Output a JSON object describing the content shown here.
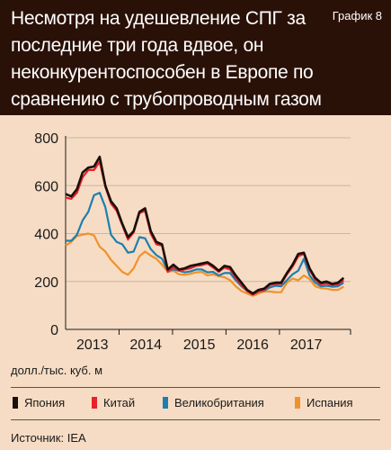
{
  "header": {
    "title": "Несмотря на удешевление СПГ за последние три года вдвое, он неконкурентоспособен в Европе по сравнению с трубопроводным газом",
    "label": "График 8"
  },
  "units": "долл./тыс. куб. м",
  "source": "Источник: IEA",
  "colors": {
    "background": "#f6dcc4",
    "header": "#2a1108",
    "japan": "#1a0f0a",
    "china": "#e8202a",
    "uk": "#1c7fb0",
    "spain": "#f0922a"
  },
  "chart_data": {
    "type": "line",
    "x_start": 2012.5,
    "x_end": 2017.83,
    "ylim": [
      0,
      800
    ],
    "yticks": [
      "0",
      "200",
      "400",
      "600",
      "800"
    ],
    "xticks": [
      {
        "label": "2013",
        "value": 2013.0
      },
      {
        "label": "2014",
        "value": 2014.0
      },
      {
        "label": "2015",
        "value": 2015.0
      },
      {
        "label": "2016",
        "value": 2016.0
      },
      {
        "label": "2017",
        "value": 2017.0
      }
    ],
    "series": [
      {
        "name": "Япония",
        "color": "#1a0f0a",
        "values": [
          565,
          555,
          585,
          655,
          675,
          680,
          720,
          600,
          535,
          505,
          440,
          385,
          410,
          490,
          505,
          410,
          365,
          355,
          250,
          270,
          250,
          255,
          265,
          270,
          275,
          280,
          265,
          245,
          265,
          260,
          225,
          195,
          165,
          150,
          165,
          170,
          190,
          195,
          195,
          235,
          270,
          315,
          320,
          255,
          215,
          195,
          200,
          190,
          195,
          215
        ]
      },
      {
        "name": "Китай",
        "color": "#e8202a",
        "values": [
          550,
          545,
          570,
          635,
          665,
          665,
          700,
          595,
          525,
          495,
          435,
          375,
          405,
          485,
          495,
          400,
          355,
          350,
          240,
          260,
          245,
          250,
          255,
          265,
          268,
          275,
          258,
          240,
          258,
          250,
          215,
          185,
          160,
          145,
          158,
          165,
          185,
          190,
          190,
          230,
          262,
          305,
          315,
          248,
          208,
          188,
          192,
          185,
          188,
          205
        ]
      },
      {
        "name": "Великобритания",
        "color": "#1c7fb0",
        "values": [
          370,
          370,
          395,
          455,
          490,
          560,
          570,
          510,
          395,
          365,
          355,
          320,
          325,
          385,
          380,
          335,
          310,
          295,
          245,
          250,
          245,
          238,
          242,
          250,
          250,
          238,
          240,
          225,
          235,
          235,
          205,
          180,
          160,
          145,
          158,
          162,
          175,
          182,
          180,
          205,
          230,
          245,
          295,
          225,
          195,
          180,
          182,
          178,
          180,
          195
        ]
      },
      {
        "name": "Испания",
        "color": "#f0922a",
        "values": [
          350,
          365,
          390,
          395,
          400,
          392,
          345,
          325,
          290,
          265,
          240,
          228,
          255,
          305,
          325,
          308,
          295,
          270,
          240,
          245,
          230,
          228,
          232,
          238,
          240,
          225,
          230,
          222,
          218,
          205,
          180,
          160,
          150,
          140,
          150,
          158,
          158,
          155,
          155,
          195,
          212,
          205,
          225,
          210,
          180,
          172,
          170,
          165,
          165,
          178
        ]
      }
    ]
  }
}
